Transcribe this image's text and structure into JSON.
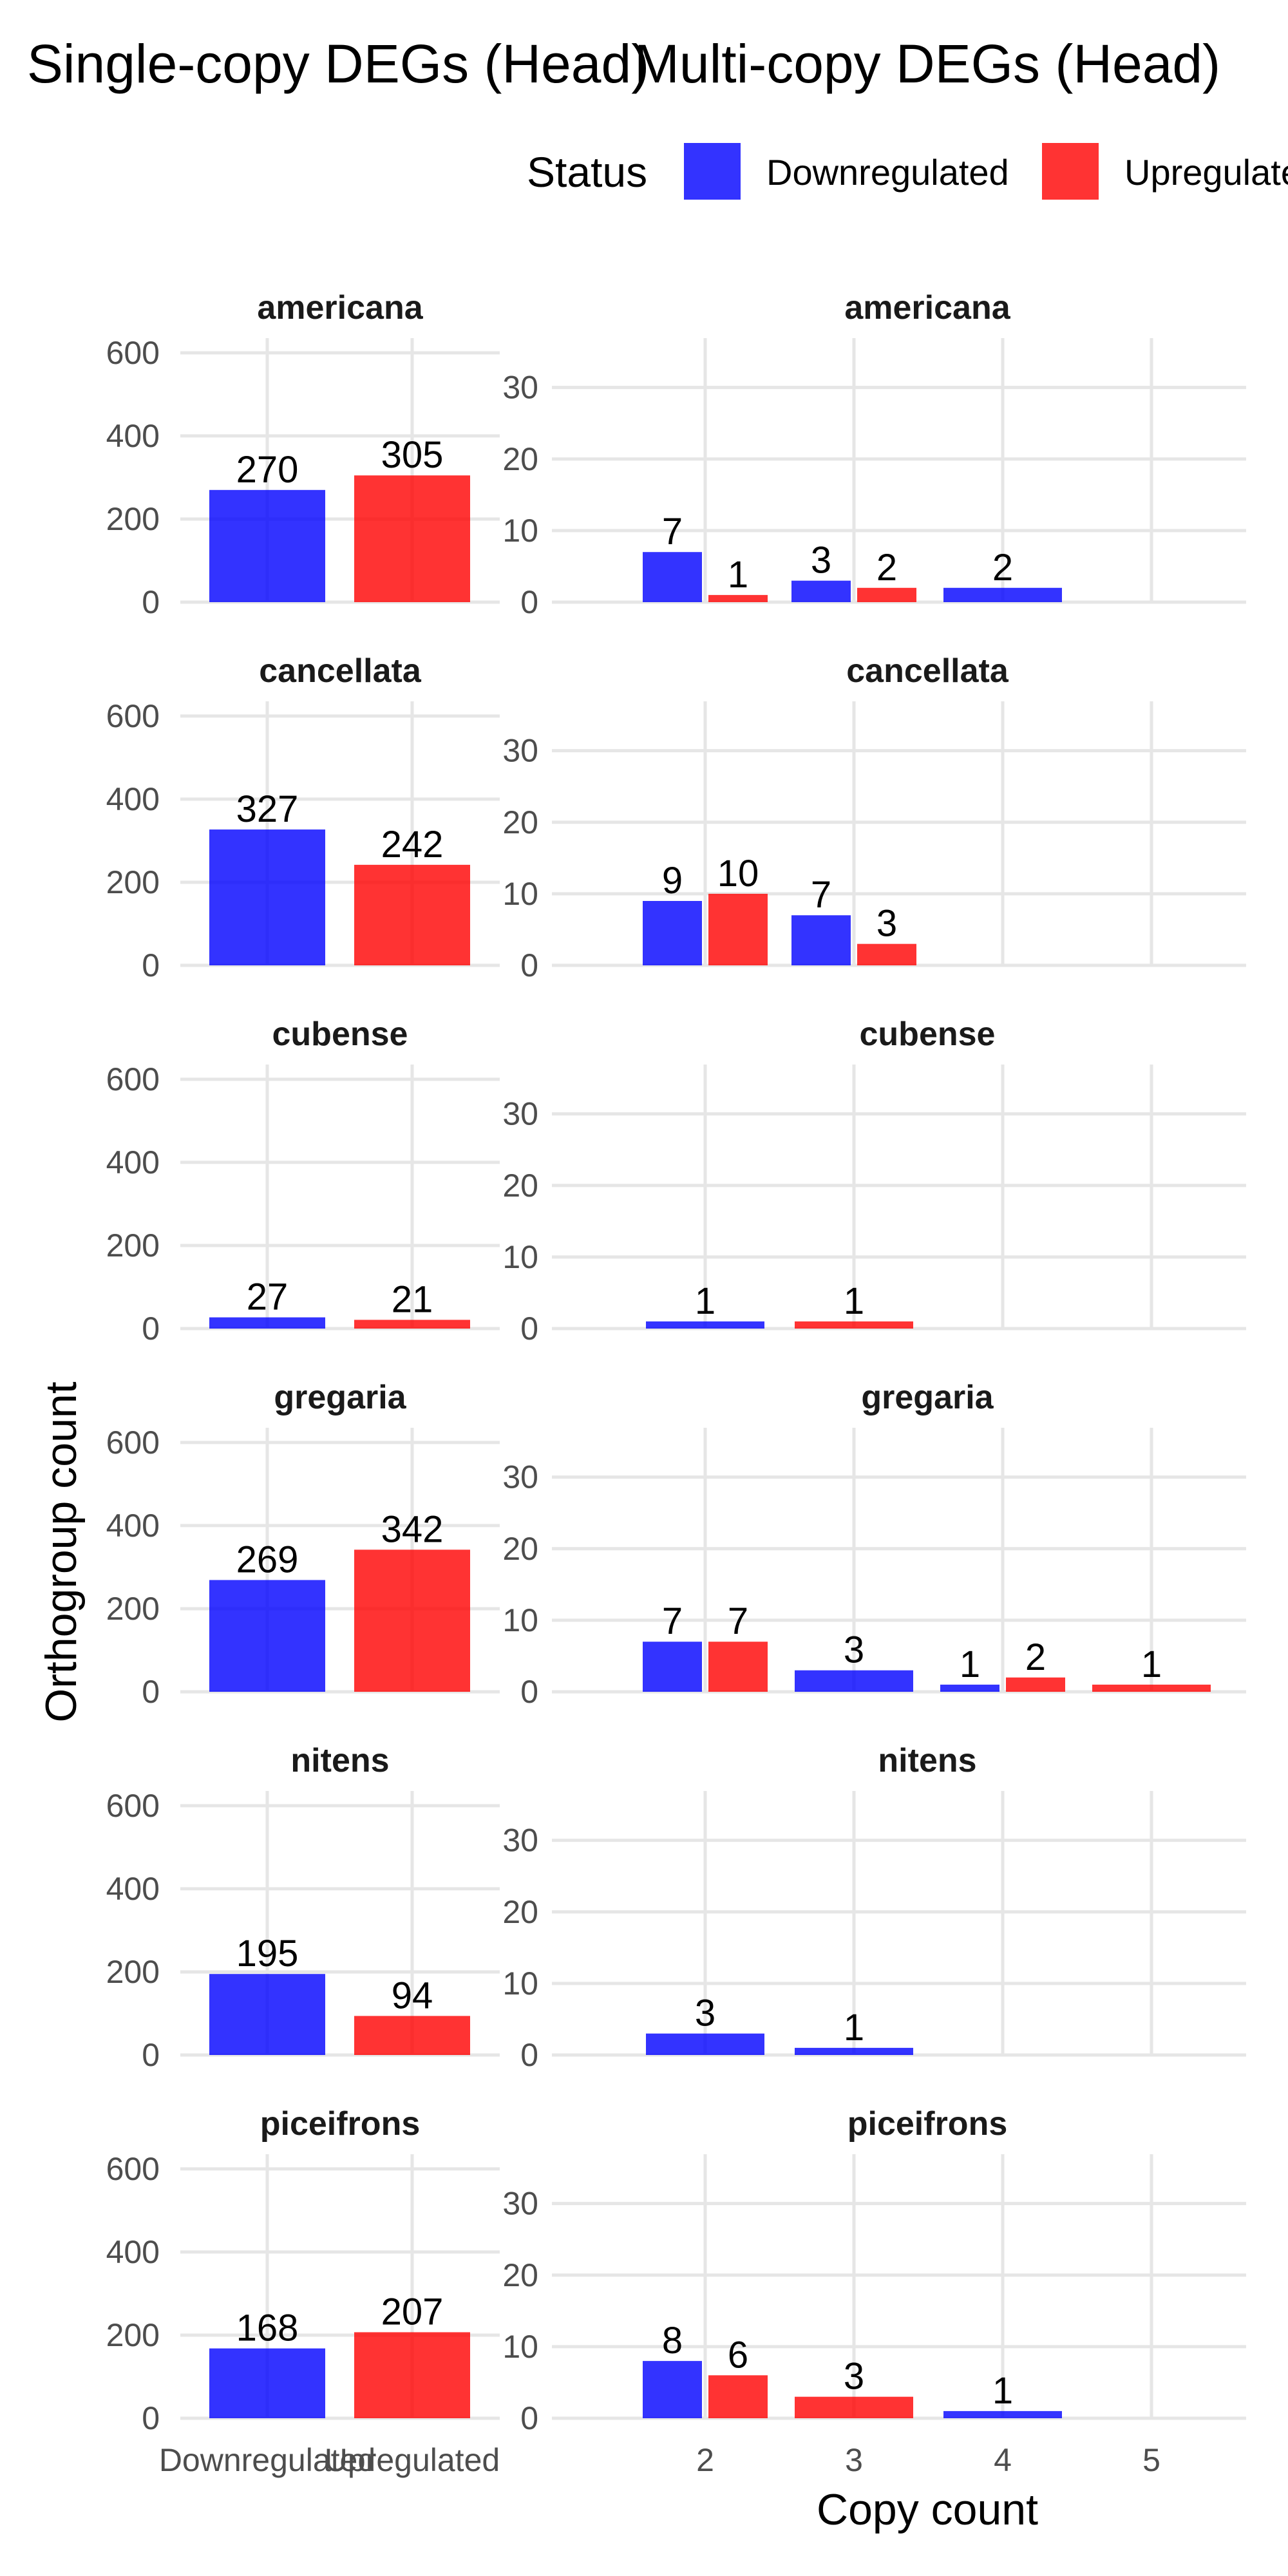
{
  "legend": {
    "title": "Status",
    "items": [
      {
        "label": "Downregulated",
        "color": "#0000FF"
      },
      {
        "label": "Upregulated",
        "color": "#FF0000"
      }
    ]
  },
  "chart_data": [
    {
      "type": "bar",
      "title": "Single-copy DEGs (Head)",
      "xlabel": "",
      "ylabel": "Orthogroup count",
      "ylim": [
        0,
        620
      ],
      "yticks": [
        0,
        200,
        400,
        600
      ],
      "categories": [
        "Downregulated",
        "Upregulated"
      ],
      "colors": [
        "#0000FF",
        "#FF0000"
      ],
      "grid": true,
      "panels": [
        {
          "name": "americana",
          "values": [
            270,
            305
          ]
        },
        {
          "name": "cancellata",
          "values": [
            327,
            242
          ]
        },
        {
          "name": "cubense",
          "values": [
            27,
            21
          ]
        },
        {
          "name": "gregaria",
          "values": [
            269,
            342
          ]
        },
        {
          "name": "nitens",
          "values": [
            195,
            94
          ]
        },
        {
          "name": "piceifrons",
          "values": [
            168,
            207
          ]
        }
      ]
    },
    {
      "type": "bar",
      "title": "Multi-copy DEGs (Head)",
      "xlabel": "Copy count",
      "ylabel": "Orthogroup count",
      "ylim": [
        0,
        36
      ],
      "yticks": [
        0,
        10,
        20,
        30
      ],
      "x": [
        2,
        3,
        4,
        5
      ],
      "grid": true,
      "legend_position": "top",
      "panels": [
        {
          "name": "americana",
          "bars": [
            {
              "x": 2,
              "status": "Downregulated",
              "value": 7
            },
            {
              "x": 2,
              "status": "Upregulated",
              "value": 1
            },
            {
              "x": 3,
              "status": "Downregulated",
              "value": 3
            },
            {
              "x": 3,
              "status": "Upregulated",
              "value": 2
            },
            {
              "x": 4,
              "status": "Downregulated",
              "value": 2
            }
          ]
        },
        {
          "name": "cancellata",
          "bars": [
            {
              "x": 2,
              "status": "Downregulated",
              "value": 9
            },
            {
              "x": 2,
              "status": "Upregulated",
              "value": 10
            },
            {
              "x": 3,
              "status": "Downregulated",
              "value": 7
            },
            {
              "x": 3,
              "status": "Upregulated",
              "value": 3
            }
          ]
        },
        {
          "name": "cubense",
          "bars": [
            {
              "x": 2,
              "status": "Downregulated",
              "value": 1
            },
            {
              "x": 3,
              "status": "Upregulated",
              "value": 1
            }
          ]
        },
        {
          "name": "gregaria",
          "bars": [
            {
              "x": 2,
              "status": "Downregulated",
              "value": 7
            },
            {
              "x": 2,
              "status": "Upregulated",
              "value": 7
            },
            {
              "x": 3,
              "status": "Downregulated",
              "value": 3
            },
            {
              "x": 4,
              "status": "Downregulated",
              "value": 1
            },
            {
              "x": 4,
              "status": "Upregulated",
              "value": 2
            },
            {
              "x": 5,
              "status": "Upregulated",
              "value": 1
            }
          ]
        },
        {
          "name": "nitens",
          "bars": [
            {
              "x": 2,
              "status": "Downregulated",
              "value": 3
            },
            {
              "x": 3,
              "status": "Downregulated",
              "value": 1
            }
          ]
        },
        {
          "name": "piceifrons",
          "bars": [
            {
              "x": 2,
              "status": "Downregulated",
              "value": 8
            },
            {
              "x": 2,
              "status": "Upregulated",
              "value": 6
            },
            {
              "x": 3,
              "status": "Upregulated",
              "value": 3
            },
            {
              "x": 4,
              "status": "Downregulated",
              "value": 1
            }
          ]
        }
      ]
    }
  ]
}
